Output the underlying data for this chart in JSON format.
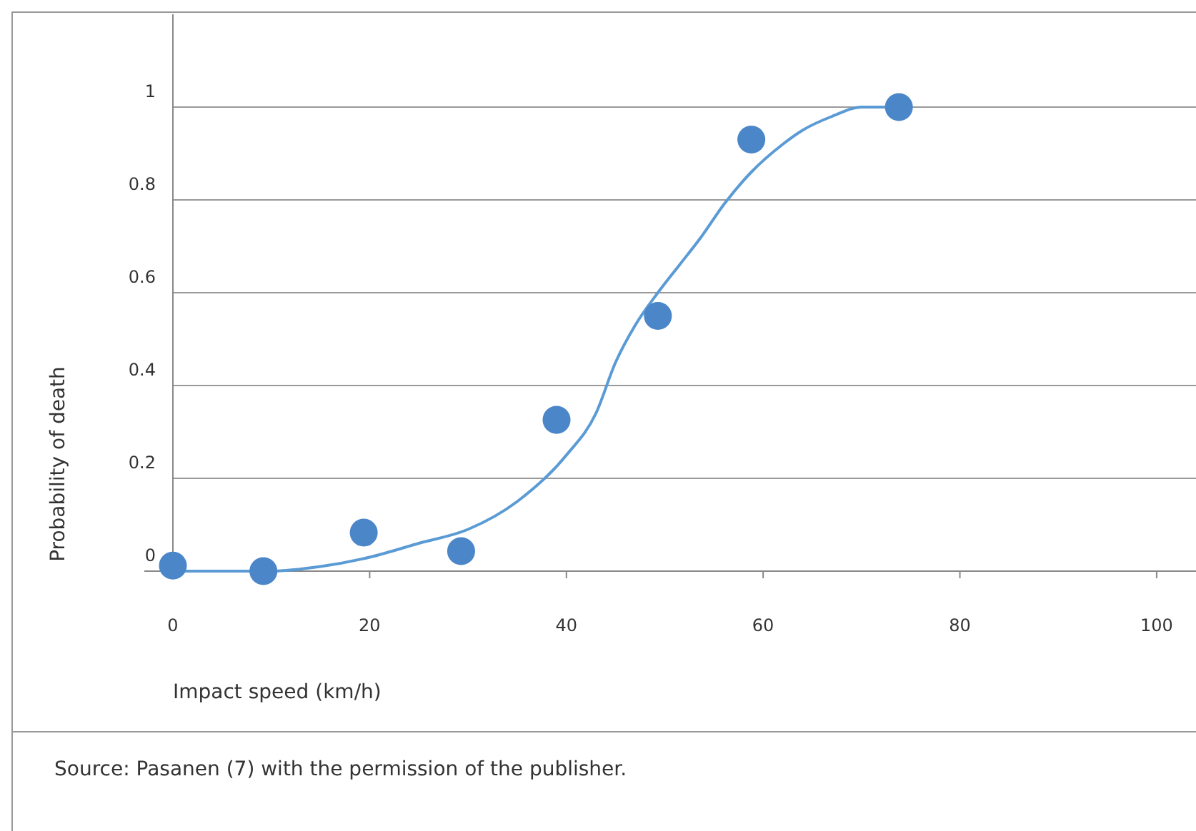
{
  "chart_data": {
    "type": "scatter",
    "xlabel": "Impact speed (km/h)",
    "ylabel": "Probability of death",
    "annotations": [
      "Source: Pasanen (7) with the permission of the publisher."
    ],
    "xlim": [
      0,
      104
    ],
    "xticks": [
      0,
      20,
      40,
      60,
      80,
      100
    ],
    "ylim": [
      0,
      1.2
    ],
    "yticks": [
      0,
      0.2,
      0.4,
      0.6,
      0.8,
      1
    ],
    "grid": "y",
    "marker": "circle",
    "series": [
      {
        "type": "line",
        "color": "#5b9bd5",
        "line_style": "solid",
        "marker": "none",
        "x": [
          0,
          5,
          10,
          15,
          20,
          25,
          30,
          35,
          40,
          43,
          45,
          47,
          49.3,
          51.5,
          53.7,
          56,
          58.8,
          62,
          64,
          67,
          70,
          74
        ],
        "values": [
          0,
          0,
          0,
          0.01,
          0.03,
          0.06,
          0.09,
          0.15,
          0.25,
          0.34,
          0.45,
          0.53,
          0.6,
          0.66,
          0.72,
          0.79,
          0.86,
          0.92,
          0.95,
          0.98,
          1,
          1
        ]
      },
      {
        "color": "#4a86c8",
        "x": [
          0,
          9.2,
          19.4,
          29.3,
          39,
          49.3,
          58.8,
          73.8
        ],
        "values": [
          0.012,
          0,
          0.083,
          0.043,
          0.326,
          0.55,
          0.93,
          1
        ]
      }
    ]
  }
}
